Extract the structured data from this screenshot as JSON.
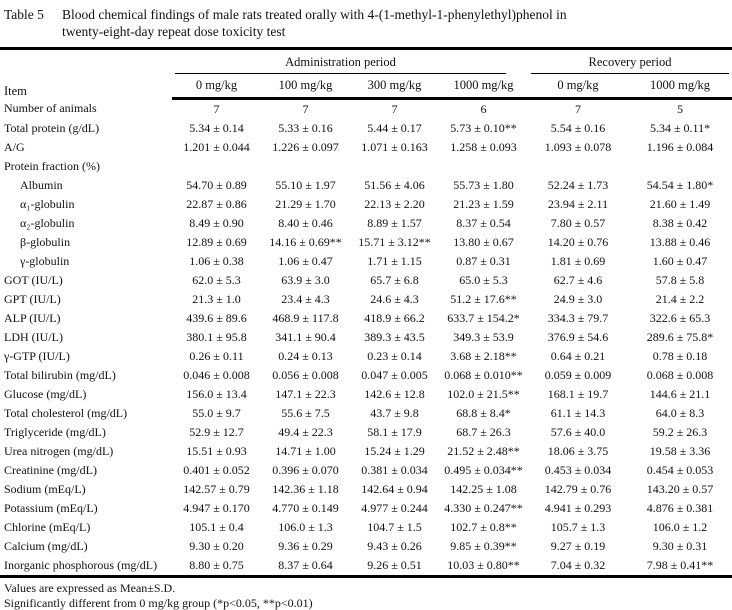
{
  "title": {
    "label": "Table 5",
    "caption_line1": "Blood chemical findings of male rats treated orally with 4-(1-methyl-1-phenylethyl)phenol in",
    "caption_line2": "twenty-eight-day repeat dose toxicity test"
  },
  "header": {
    "item": "Item",
    "groups": [
      {
        "label": "Administration period",
        "cols": [
          "0 mg/kg",
          "100 mg/kg",
          "300 mg/kg",
          "1000 mg/kg"
        ]
      },
      {
        "label": "Recovery period",
        "cols": [
          "0 mg/kg",
          "1000 mg/kg"
        ]
      }
    ]
  },
  "rows": [
    {
      "label": "Number of animals",
      "indent": false,
      "values": [
        "7",
        "7",
        "7",
        "6",
        "7",
        "5"
      ]
    },
    {
      "label": "Total protein (g/dL)",
      "indent": false,
      "values": [
        "5.34 ± 0.14",
        "5.33 ± 0.16",
        "5.44 ± 0.17",
        "5.73 ± 0.10**",
        "5.54 ± 0.16",
        "5.34 ± 0.11*"
      ]
    },
    {
      "label": "A/G",
      "indent": false,
      "values": [
        "1.201 ± 0.044",
        "1.226 ± 0.097",
        "1.071 ± 0.163",
        "1.258 ± 0.093",
        "1.093 ± 0.078",
        "1.196 ± 0.084"
      ]
    },
    {
      "label": "Protein fraction (%)",
      "indent": false,
      "values": [
        "",
        "",
        "",
        "",
        "",
        ""
      ]
    },
    {
      "label": "Albumin",
      "indent": true,
      "values": [
        "54.70 ± 0.89",
        "55.10 ± 1.97",
        "51.56 ± 4.06",
        "55.73 ± 1.80",
        "52.24 ± 1.73",
        "54.54 ± 1.80*"
      ]
    },
    {
      "label": "α₁-globulin",
      "indent": true,
      "values": [
        "22.87 ± 0.86",
        "21.29 ± 1.70",
        "22.13 ± 2.20",
        "21.23 ± 1.59",
        "23.94 ± 2.11",
        "21.60 ± 1.49"
      ]
    },
    {
      "label": "α₂-globulin",
      "indent": true,
      "values": [
        "8.49 ± 0.90",
        "8.40 ± 0.46",
        "8.89 ± 1.57",
        "8.37 ± 0.54",
        "7.80 ± 0.57",
        "8.38 ± 0.42"
      ]
    },
    {
      "label": "β-globulin",
      "indent": true,
      "values": [
        "12.89 ± 0.69",
        "14.16 ± 0.69**",
        "15.71 ± 3.12**",
        "13.80 ± 0.67",
        "14.20 ± 0.76",
        "13.88 ± 0.46"
      ]
    },
    {
      "label": "γ-globulin",
      "indent": true,
      "values": [
        "1.06 ± 0.38",
        "1.06 ± 0.47",
        "1.71 ± 1.15",
        "0.87 ± 0.31",
        "1.81 ± 0.69",
        "1.60 ± 0.47"
      ]
    },
    {
      "label": "GOT (IU/L)",
      "indent": false,
      "values": [
        "62.0 ± 5.3",
        "63.9 ± 3.0",
        "65.7 ± 6.8",
        "65.0 ± 5.3",
        "62.7 ± 4.6",
        "57.8 ± 5.8"
      ]
    },
    {
      "label": "GPT (IU/L)",
      "indent": false,
      "values": [
        "21.3 ± 1.0",
        "23.4 ± 4.3",
        "24.6 ± 4.3",
        "51.2 ± 17.6**",
        "24.9 ± 3.0",
        "21.4 ± 2.2"
      ]
    },
    {
      "label": "ALP (IU/L)",
      "indent": false,
      "values": [
        "439.6 ± 89.6",
        "468.9 ± 117.8",
        "418.9 ± 66.2",
        "633.7 ± 154.2*",
        "334.3 ± 79.7",
        "322.6 ± 65.3"
      ]
    },
    {
      "label": "LDH (IU/L)",
      "indent": false,
      "values": [
        "380.1 ± 95.8",
        "341.1 ± 90.4",
        "389.3 ± 43.5",
        "349.3 ± 53.9",
        "376.9 ± 54.6",
        "289.6 ± 75.8*"
      ]
    },
    {
      "label": "γ-GTP (IU/L)",
      "indent": false,
      "values": [
        "0.26 ± 0.11",
        "0.24 ± 0.13",
        "0.23 ± 0.14",
        "3.68 ± 2.18**",
        "0.64 ± 0.21",
        "0.78 ± 0.18"
      ]
    },
    {
      "label": "Total bilirubin (mg/dL)",
      "indent": false,
      "values": [
        "0.046 ± 0.008",
        "0.056 ± 0.008",
        "0.047 ± 0.005",
        "0.068 ± 0.010**",
        "0.059 ± 0.009",
        "0.068 ± 0.008"
      ]
    },
    {
      "label": "Glucose (mg/dL)",
      "indent": false,
      "values": [
        "156.0 ± 13.4",
        "147.1 ± 22.3",
        "142.6 ± 12.8",
        "102.0 ± 21.5**",
        "168.1 ± 19.7",
        "144.6 ± 21.1"
      ]
    },
    {
      "label": "Total cholesterol (mg/dL)",
      "indent": false,
      "values": [
        "55.0 ± 9.7",
        "55.6 ± 7.5",
        "43.7 ± 9.8",
        "68.8 ± 8.4*",
        "61.1 ± 14.3",
        "64.0 ± 8.3"
      ]
    },
    {
      "label": "Triglyceride (mg/dL)",
      "indent": false,
      "values": [
        "52.9 ± 12.7",
        "49.4 ± 22.3",
        "58.1 ± 17.9",
        "68.7 ± 26.3",
        "57.6 ± 40.0",
        "59.2 ± 26.3"
      ]
    },
    {
      "label": "Urea nitrogen (mg/dL)",
      "indent": false,
      "values": [
        "15.51 ± 0.93",
        "14.71 ± 1.00",
        "15.24 ± 1.29",
        "21.52 ± 2.48**",
        "18.06 ± 3.75",
        "19.58 ± 3.36"
      ]
    },
    {
      "label": "Creatinine (mg/dL)",
      "indent": false,
      "values": [
        "0.401 ± 0.052",
        "0.396 ± 0.070",
        "0.381 ± 0.034",
        "0.495 ± 0.034**",
        "0.453 ± 0.034",
        "0.454 ± 0.053"
      ]
    },
    {
      "label": "Sodium (mEq/L)",
      "indent": false,
      "values": [
        "142.57 ± 0.79",
        "142.36 ± 1.18",
        "142.64 ± 0.94",
        "142.25 ± 1.08",
        "142.79 ± 0.76",
        "143.20 ± 0.57"
      ]
    },
    {
      "label": "Potassium (mEq/L)",
      "indent": false,
      "values": [
        "4.947 ± 0.170",
        "4.770 ± 0.149",
        "4.977 ± 0.244",
        "4.330 ± 0.247**",
        "4.941 ± 0.293",
        "4.876 ± 0.381"
      ]
    },
    {
      "label": "Chlorine (mEq/L)",
      "indent": false,
      "values": [
        "105.1 ± 0.4",
        "106.0 ± 1.3",
        "104.7 ± 1.5",
        "102.7 ± 0.8**",
        "105.7 ± 1.3",
        "106.0 ± 1.2"
      ]
    },
    {
      "label": "Calcium (mg/dL)",
      "indent": false,
      "values": [
        "9.30 ± 0.20",
        "9.36 ± 0.29",
        "9.43 ± 0.26",
        "9.85 ± 0.39**",
        "9.27 ± 0.19",
        "9.30 ± 0.31"
      ]
    },
    {
      "label": "Inorganic phosphorous (mg/dL)",
      "indent": false,
      "values": [
        "8.80 ± 0.75",
        "8.37 ± 0.64",
        "9.26 ± 0.51",
        "10.03 ± 0.80**",
        "7.04 ± 0.32",
        "7.98 ± 0.41**"
      ]
    }
  ],
  "footnotes": [
    "Values are expressed as Mean±S.D.",
    "Significantly different from 0 mg/kg group (*p<0.05, **p<0.01)"
  ]
}
